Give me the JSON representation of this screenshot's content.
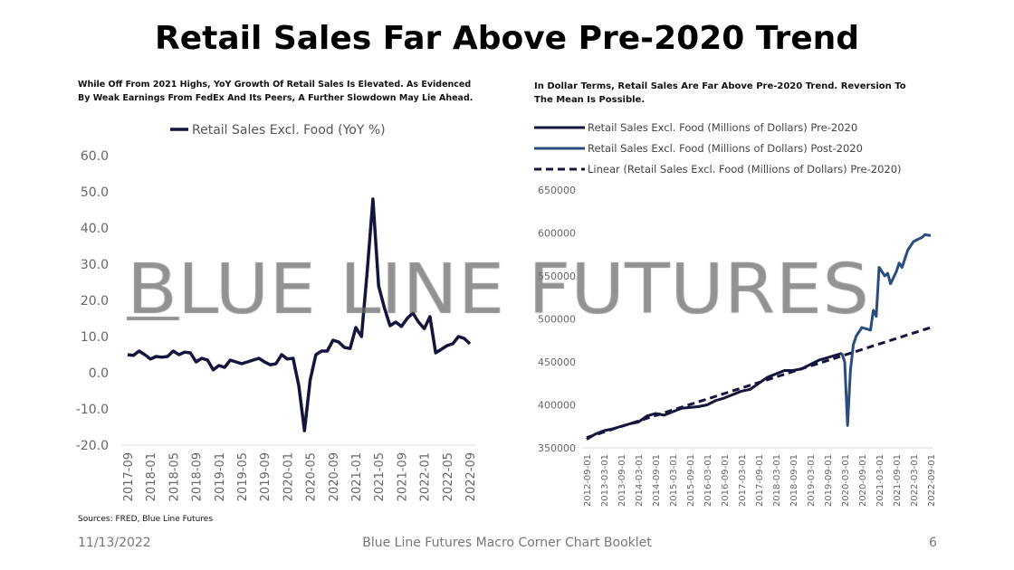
{
  "title": "Retail Sales Far Above Pre-2020 Trend",
  "left_subtitle": "While Off From 2021 Highs, YoY Growth Of Retail Sales Is Elevated. As Evidenced By Weak Earnings From FedEx And Its Peers, A Further Slowdown May Lie Ahead.",
  "right_subtitle": "In Dollar Terms, Retail Sales Are Far Above Pre-2020 Trend. Reversion To The Mean Is Possible.",
  "sources": "Sources: FRED, Blue Line Futures",
  "watermark": "BLUE LINE FUTURES",
  "footer": {
    "date": "11/13/2022",
    "center": "Blue Line Futures Macro Corner Chart Booklet",
    "page": "6"
  },
  "colors": {
    "navy": "#14143c",
    "blue": "#2b4c7e",
    "grid": "#d9d9d9",
    "tick": "#666666"
  },
  "chart_data": [
    {
      "type": "line",
      "title": "",
      "legend": [
        "Retail Sales Excl. Food (YoY %)"
      ],
      "legend_position": "top",
      "ylim": [
        -20,
        60
      ],
      "yticks": [
        "60.0",
        "50.0",
        "40.0",
        "30.0",
        "20.0",
        "10.0",
        "0.0",
        "-10.0",
        "-20.0"
      ],
      "xtick_labels": [
        "2017-09",
        "2018-01",
        "2018-05",
        "2018-09",
        "2019-01",
        "2019-05",
        "2019-09",
        "2020-01",
        "2020-05",
        "2020-09",
        "2021-01",
        "2021-05",
        "2021-09",
        "2022-01",
        "2022-05",
        "2022-09"
      ],
      "x_start": "2017-09",
      "x_step_months": 1,
      "values": [
        5,
        4.8,
        6,
        5,
        3.8,
        4.5,
        4.3,
        4.5,
        6,
        5,
        5.7,
        5.5,
        3,
        4,
        3.5,
        0.8,
        2,
        1.5,
        3.5,
        3,
        2.5,
        3,
        3.5,
        4,
        3,
        2.2,
        2.5,
        5,
        3.8,
        4,
        -3.5,
        -16,
        -2,
        5,
        6,
        6,
        9,
        8.5,
        7,
        6.7,
        12.5,
        10,
        28,
        48,
        24,
        18,
        13,
        14,
        12.8,
        15,
        16.5,
        14,
        12.2,
        15.5,
        5.5,
        6.5,
        7.5,
        8,
        10,
        9.5,
        8
      ]
    },
    {
      "type": "line",
      "legend": [
        "Retail Sales Excl. Food (Millions of Dollars) Pre-2020",
        "Retail Sales Excl. Food (Millions of Dollars) Post-2020",
        "Linear (Retail Sales Excl. Food (Millions of Dollars) Pre-2020)"
      ],
      "legend_position": "top-left",
      "ylim": [
        350000,
        650000
      ],
      "yticks": [
        "650000",
        "600000",
        "550000",
        "500000",
        "450000",
        "400000",
        "350000"
      ],
      "xtick_labels": [
        "2012-09-01",
        "2013-03-01",
        "2013-09-01",
        "2014-03-01",
        "2014-09-01",
        "2015-03-01",
        "2015-09-01",
        "2016-03-01",
        "2016-09-01",
        "2017-03-01",
        "2017-09-01",
        "2018-03-01",
        "2018-09-01",
        "2019-03-01",
        "2019-09-01",
        "2020-03-01",
        "2020-09-01",
        "2021-03-01",
        "2021-09-01",
        "2022-03-01",
        "2022-09-01"
      ],
      "series": [
        {
          "name": "Pre-2020",
          "x_months_from_2012_09": [
            0,
            3,
            6,
            9,
            12,
            15,
            18,
            21,
            24,
            27,
            30,
            33,
            36,
            39,
            42,
            45,
            48,
            51,
            54,
            57,
            60,
            63,
            66,
            69,
            72,
            75,
            78,
            81,
            84,
            87,
            89
          ],
          "values": [
            360000,
            366000,
            370000,
            372000,
            375000,
            378000,
            380000,
            387000,
            390000,
            388000,
            392000,
            396000,
            397000,
            398000,
            400000,
            405000,
            408000,
            412000,
            416000,
            418000,
            425000,
            432000,
            436000,
            440000,
            440000,
            442000,
            447000,
            452000,
            455000,
            458000,
            460000
          ]
        },
        {
          "name": "Post-2020",
          "x_months_from_2012_09": [
            89,
            90,
            91,
            92,
            93,
            94,
            96,
            99,
            100,
            101,
            102,
            103,
            104,
            105,
            106,
            108,
            109,
            110,
            111,
            112,
            114,
            117,
            118,
            120
          ],
          "values": [
            460000,
            450000,
            376000,
            440000,
            470000,
            480000,
            490000,
            487000,
            510000,
            503000,
            560000,
            555000,
            550000,
            553000,
            541000,
            555000,
            565000,
            560000,
            570000,
            580000,
            590000,
            595000,
            598000,
            597000
          ]
        },
        {
          "name": "Linear trend",
          "x_months_from_2012_09": [
            0,
            120
          ],
          "values": [
            362000,
            490000
          ]
        }
      ]
    }
  ]
}
